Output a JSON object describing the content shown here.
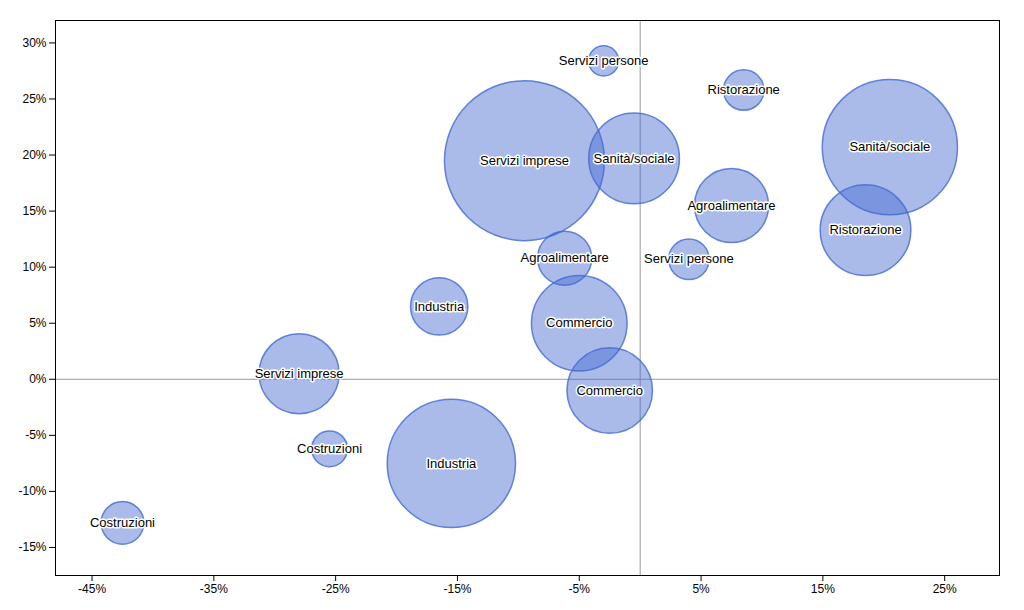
{
  "chart_data": {
    "type": "scatter",
    "x": [
      -0.425,
      -0.28,
      -0.255,
      -0.165,
      -0.155,
      -0.095,
      -0.062,
      -0.05,
      -0.025,
      -0.005,
      -0.03,
      0.085,
      0.075,
      0.04,
      0.205,
      0.185
    ],
    "y": [
      -0.128,
      0.005,
      -0.062,
      0.065,
      -0.075,
      0.195,
      0.108,
      0.05,
      -0.01,
      0.197,
      0.284,
      0.258,
      0.155,
      0.107,
      0.207,
      0.133
    ],
    "size": [
      1000,
      3500,
      700,
      1800,
      9000,
      14000,
      1600,
      5000,
      4000,
      4500,
      500,
      900,
      3000,
      900,
      10000,
      4500
    ],
    "labels": [
      "Costruzioni",
      "Servizi imprese",
      "Costruzioni",
      "Industria",
      "Industria",
      "Servizi imprese",
      "Agroalimentare",
      "Commercio",
      "Commercio",
      "Sanità/sociale",
      "Servizi persone",
      "Ristorazione",
      "Agroalimentare",
      "Servizi persone",
      "Sanità/sociale",
      "Ristorazione"
    ],
    "xlim": [
      -0.48,
      0.295
    ],
    "ylim": [
      -0.175,
      0.32
    ],
    "xticks": [
      {
        "value": -0.45,
        "label": "-45%"
      },
      {
        "value": -0.35,
        "label": "-35%"
      },
      {
        "value": -0.25,
        "label": "-25%"
      },
      {
        "value": -0.15,
        "label": "-15%"
      },
      {
        "value": -0.05,
        "label": "-5%"
      },
      {
        "value": 0.05,
        "label": "5%"
      },
      {
        "value": 0.15,
        "label": "15%"
      },
      {
        "value": 0.25,
        "label": "25%"
      }
    ],
    "yticks": [
      {
        "value": -0.15,
        "label": "-15%"
      },
      {
        "value": -0.1,
        "label": "-10%"
      },
      {
        "value": -0.05,
        "label": "-5%"
      },
      {
        "value": 0.0,
        "label": "0%"
      },
      {
        "value": 0.05,
        "label": "5%"
      },
      {
        "value": 0.1,
        "label": "10%"
      },
      {
        "value": 0.15,
        "label": "15%"
      },
      {
        "value": 0.2,
        "label": "20%"
      },
      {
        "value": 0.25,
        "label": "25%"
      },
      {
        "value": 0.3,
        "label": "30%"
      }
    ],
    "grid": false
  }
}
